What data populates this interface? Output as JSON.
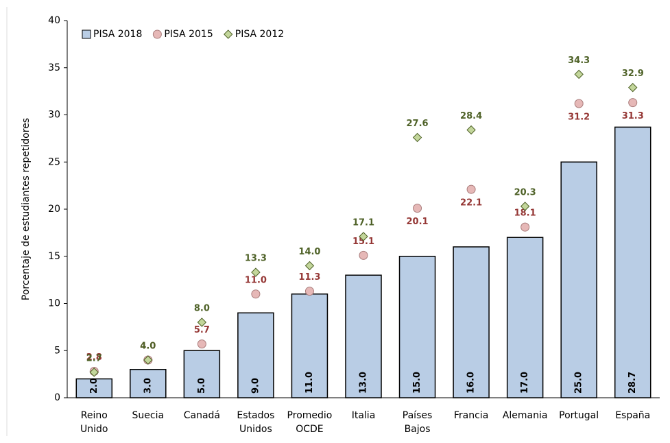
{
  "chart_data": {
    "type": "bar",
    "y_axis_label": "Porcentaje de estudiantes repetidores",
    "categories": [
      "Reino Unido",
      "Suecia",
      "Canadá",
      "Estados Unidos",
      "Promedio OCDE",
      "Italia",
      "Países Bajos",
      "Francia",
      "Alemania",
      "Portugal",
      "España"
    ],
    "series": [
      {
        "name": "PISA 2018",
        "kind": "bar",
        "color": "#b9cde5",
        "values": [
          2,
          3,
          5,
          9,
          11,
          13,
          15,
          16,
          17,
          25,
          28.7
        ],
        "value_labels": [
          "2.0",
          "3.0",
          "5.0",
          "9.0",
          "11.0",
          "13.0",
          "15.0",
          "16.0",
          "17.0",
          "25.0",
          "28.7"
        ]
      },
      {
        "name": "PISA 2015",
        "kind": "circle",
        "color": "#e6b8b7",
        "label_color": "#953735",
        "values": [
          2.8,
          4,
          5.7,
          11,
          11.3,
          15.1,
          20.1,
          22.1,
          18.1,
          31.2,
          31.3
        ],
        "value_labels": [
          "2.8",
          "4.0",
          "5.7",
          "11.0",
          "11.3",
          "15.1",
          "20.1",
          "22.1",
          "18.1",
          "31.2",
          "31.3"
        ]
      },
      {
        "name": "PISA 2012",
        "kind": "diamond",
        "color": "#c3d69b",
        "label_color": "#4f6228",
        "values": [
          2.7,
          4,
          8,
          13.3,
          14,
          17.1,
          27.6,
          28.4,
          20.3,
          34.3,
          32.9
        ],
        "value_labels": [
          "2.7",
          "4.0",
          "8.0",
          "13.3",
          "14.0",
          "17.1",
          "27.6",
          "28.4",
          "20.3",
          "34.3",
          "32.9"
        ]
      }
    ],
    "ylim": [
      0,
      40
    ],
    "yticks": [
      0,
      5,
      10,
      15,
      20,
      25,
      30,
      35,
      40
    ],
    "legend": "top-left"
  }
}
